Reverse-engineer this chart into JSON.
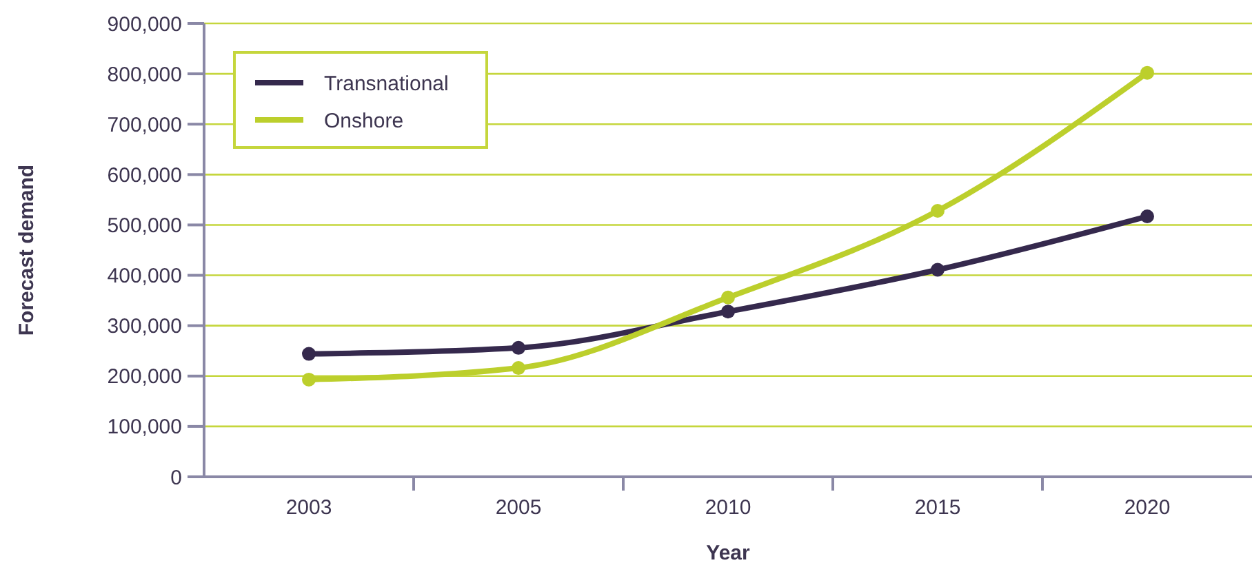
{
  "chart_data": {
    "type": "line",
    "xlabel": "Year",
    "ylabel": "Forecast demand",
    "categories": [
      "2003",
      "2005",
      "2010",
      "2015",
      "2020"
    ],
    "series": [
      {
        "name": "Transnational",
        "color": "#35294d",
        "values": [
          244000,
          256000,
          328000,
          411000,
          517000
        ]
      },
      {
        "name": "Onshore",
        "color": "#bccf2c",
        "values": [
          193000,
          216000,
          356000,
          528000,
          802000
        ]
      }
    ],
    "ylim": [
      0,
      900000
    ],
    "yticks": [
      {
        "value": 0,
        "label": "0"
      },
      {
        "value": 100000,
        "label": "100,000"
      },
      {
        "value": 200000,
        "label": "200,000"
      },
      {
        "value": 300000,
        "label": "300,000"
      },
      {
        "value": 400000,
        "label": "400,000"
      },
      {
        "value": 500000,
        "label": "500,000"
      },
      {
        "value": 600000,
        "label": "600,000"
      },
      {
        "value": 700000,
        "label": "700,000"
      },
      {
        "value": 800000,
        "label": "800,000"
      },
      {
        "value": 900000,
        "label": "900,000"
      }
    ],
    "grid": "y",
    "legend": "top left",
    "marker": "circle",
    "line_style": "solid"
  }
}
